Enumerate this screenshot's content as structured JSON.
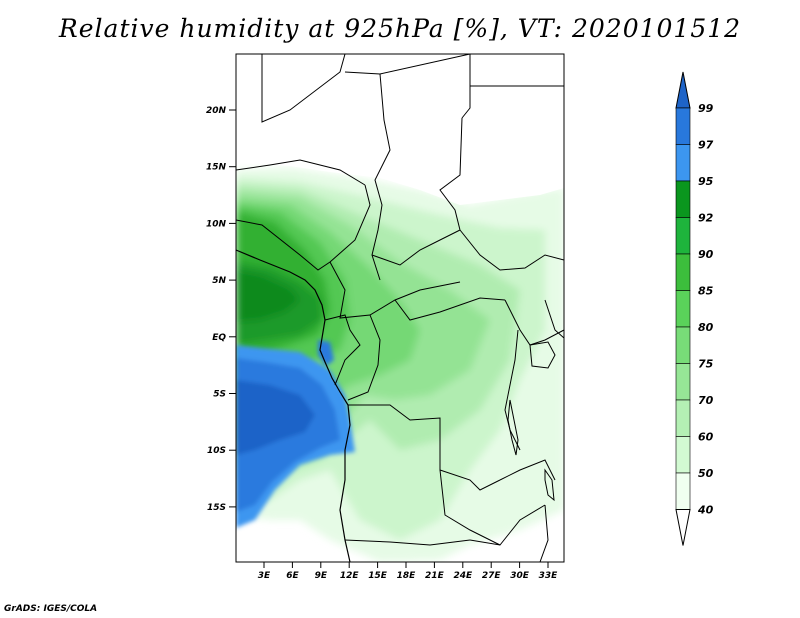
{
  "title": "Relative humidity at 925hPa [%], VT: 2020101512",
  "credit": "GrADS: IGES/COLA",
  "map": {
    "lat_labels": [
      "20N",
      "15N",
      "10N",
      "5N",
      "EQ",
      "5S",
      "10S",
      "15S"
    ],
    "lon_labels": [
      "3E",
      "6E",
      "9E",
      "12E",
      "15E",
      "18E",
      "21E",
      "24E",
      "27E",
      "30E",
      "33E"
    ]
  },
  "colorbar": {
    "labels": [
      "99",
      "97",
      "95",
      "92",
      "90",
      "85",
      "80",
      "75",
      "70",
      "60",
      "50",
      "40"
    ],
    "colors": [
      "#1e64c8",
      "#2878dc",
      "#3c96f0",
      "#0a961e",
      "#1eb43c",
      "#3cbe3c",
      "#5ad25a",
      "#78dc78",
      "#96e696",
      "#b4f0b4",
      "#d2fad2",
      "#f0fff0"
    ]
  }
}
